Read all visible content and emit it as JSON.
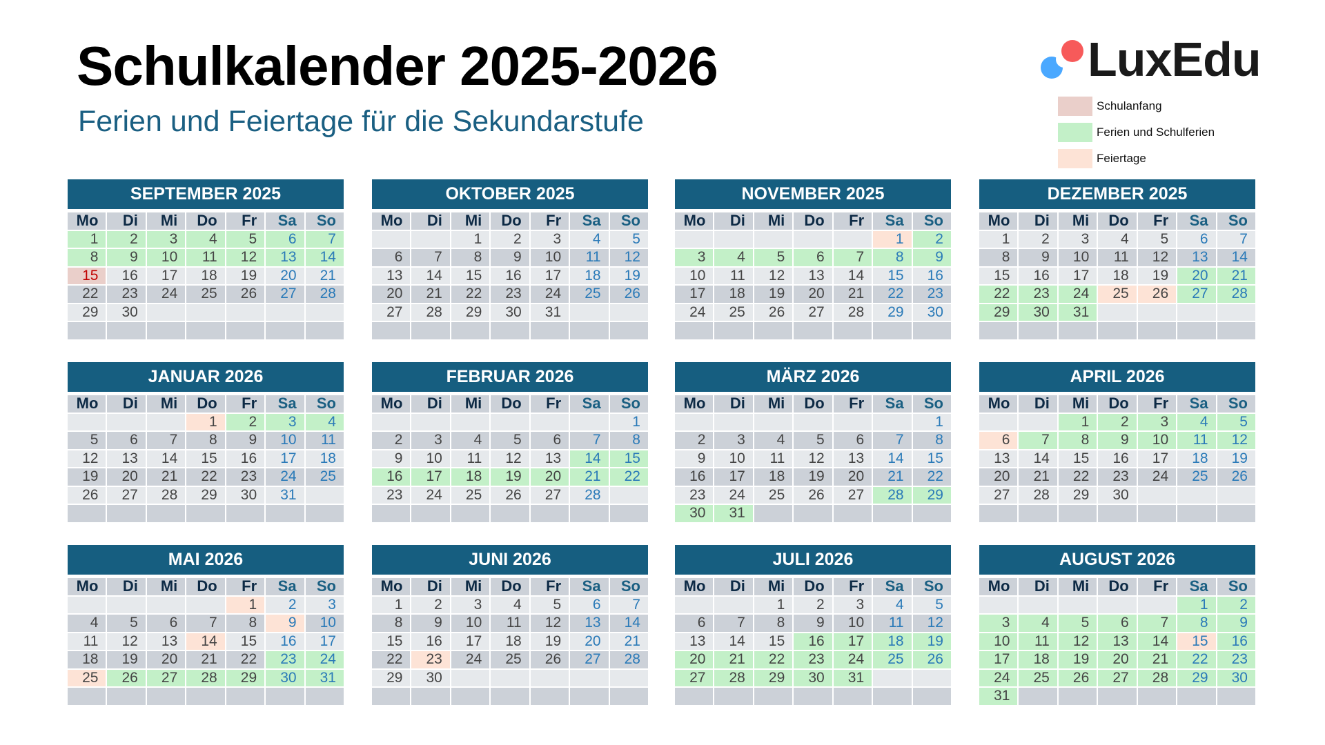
{
  "header": {
    "title": "Schulkalender 2025-2026",
    "subtitle": "Ferien und Feiertage für die Sekundarstufe"
  },
  "logo": {
    "text": "LuxEdu",
    "colors": {
      "red": "#f75a5a",
      "blue": "#4aa8ff"
    }
  },
  "legend": [
    {
      "key": "anfang",
      "label": "Schulanfang",
      "color": "#eacfca"
    },
    {
      "key": "ferien",
      "label": "Ferien und Schulferien",
      "color": "#c3f0c8"
    },
    {
      "key": "feier",
      "label": "Feiertage",
      "color": "#fde3d6"
    }
  ],
  "weekdays": [
    "Mo",
    "Di",
    "Mi",
    "Do",
    "Fr",
    "Sa",
    "So"
  ],
  "colors": {
    "month_header": "#165e80",
    "weekend_text": "#2a7ab8",
    "schulanfang_text": "#c00000"
  },
  "months": [
    {
      "name": "SEPTEMBER 2025",
      "first_weekday": "Mo",
      "start_offset": 0,
      "days": 30,
      "ferien": [
        1,
        2,
        3,
        4,
        5,
        6,
        7,
        8,
        9,
        10,
        11,
        12,
        13,
        14
      ],
      "feier": [],
      "anfang": [
        15
      ]
    },
    {
      "name": "OKTOBER 2025",
      "start_offset": 2,
      "days": 31,
      "ferien": [],
      "feier": [],
      "anfang": []
    },
    {
      "name": "NOVEMBER 2025",
      "start_offset": 5,
      "days": 30,
      "ferien": [
        2,
        3,
        4,
        5,
        6,
        7,
        8,
        9
      ],
      "feier": [
        1
      ],
      "anfang": []
    },
    {
      "name": "DEZEMBER 2025",
      "start_offset": 0,
      "days": 31,
      "ferien": [
        20,
        21,
        22,
        23,
        24,
        27,
        28,
        29,
        30,
        31
      ],
      "feier": [
        25,
        26
      ],
      "anfang": []
    },
    {
      "name": "JANUAR 2026",
      "start_offset": 3,
      "days": 31,
      "ferien": [
        2,
        3,
        4
      ],
      "feier": [
        1
      ],
      "anfang": []
    },
    {
      "name": "FEBRUAR 2026",
      "start_offset": 6,
      "days": 28,
      "ferien": [
        14,
        15,
        16,
        17,
        18,
        19,
        20,
        21,
        22
      ],
      "feier": [],
      "anfang": []
    },
    {
      "name": "MÄRZ 2026",
      "start_offset": 6,
      "days": 31,
      "ferien": [
        28,
        29,
        30,
        31
      ],
      "feier": [],
      "anfang": []
    },
    {
      "name": "APRIL 2026",
      "start_offset": 2,
      "days": 30,
      "ferien": [
        1,
        2,
        3,
        4,
        5,
        7,
        8,
        9,
        10,
        11,
        12
      ],
      "feier": [
        6
      ],
      "anfang": []
    },
    {
      "name": "MAI 2026",
      "start_offset": 4,
      "days": 31,
      "ferien": [
        23,
        24,
        26,
        27,
        28,
        29,
        30,
        31
      ],
      "feier": [
        1,
        9,
        14,
        25
      ],
      "anfang": []
    },
    {
      "name": "JUNI 2026",
      "start_offset": 0,
      "days": 30,
      "ferien": [],
      "feier": [
        23
      ],
      "anfang": []
    },
    {
      "name": "JULI 2026",
      "start_offset": 2,
      "days": 31,
      "ferien": [
        16,
        17,
        18,
        19,
        20,
        21,
        22,
        23,
        24,
        25,
        26,
        27,
        28,
        29,
        30,
        31
      ],
      "feier": [],
      "anfang": []
    },
    {
      "name": "AUGUST 2026",
      "start_offset": 5,
      "days": 31,
      "ferien": [
        1,
        2,
        3,
        4,
        5,
        6,
        7,
        8,
        9,
        10,
        11,
        12,
        13,
        14,
        16,
        17,
        18,
        19,
        20,
        21,
        22,
        23,
        24,
        25,
        26,
        27,
        28,
        29,
        30,
        31
      ],
      "feier": [
        15
      ],
      "anfang": []
    }
  ]
}
